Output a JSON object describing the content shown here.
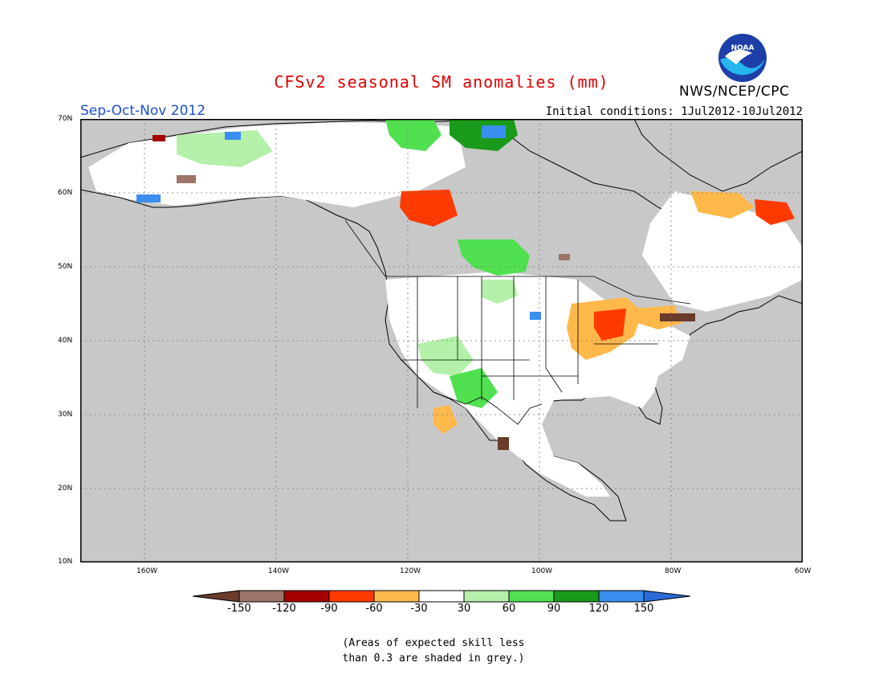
{
  "title": "CFSv2 seasonal SM anomalies (mm)",
  "season": "Sep-Oct-Nov 2012",
  "initial_conditions": "Initial conditions: 1Jul2012-10Jul2012",
  "agency": "NWS/NCEP/CPC",
  "logo_text": "NOAA",
  "map": {
    "lat_labels": [
      "70N",
      "60N",
      "50N",
      "40N",
      "30N",
      "20N",
      "10N"
    ],
    "lon_labels": [
      "160W",
      "140W",
      "120W",
      "100W",
      "80W",
      "60W"
    ]
  },
  "colorbar": {
    "ticks": [
      "-150",
      "-120",
      "-90",
      "-60",
      "-30",
      "30",
      "60",
      "90",
      "120",
      "150"
    ],
    "colors": [
      "#6b3b2b",
      "#9c7468",
      "#a50000",
      "#ff3a00",
      "#ffb84a",
      "#ffffff",
      "#b4f0aa",
      "#50e050",
      "#1a9a1a",
      "#3a8ef0",
      "#2b6bd6"
    ]
  },
  "note_lines": [
    "(Areas of expected skill less",
    "than 0.3 are shaded in grey.)"
  ],
  "colors": {
    "grey_low_skill": "#c8c8c8",
    "ocean": "#c8c8c8",
    "title_red": "#e00000",
    "season_blue": "#1d4fd0"
  }
}
